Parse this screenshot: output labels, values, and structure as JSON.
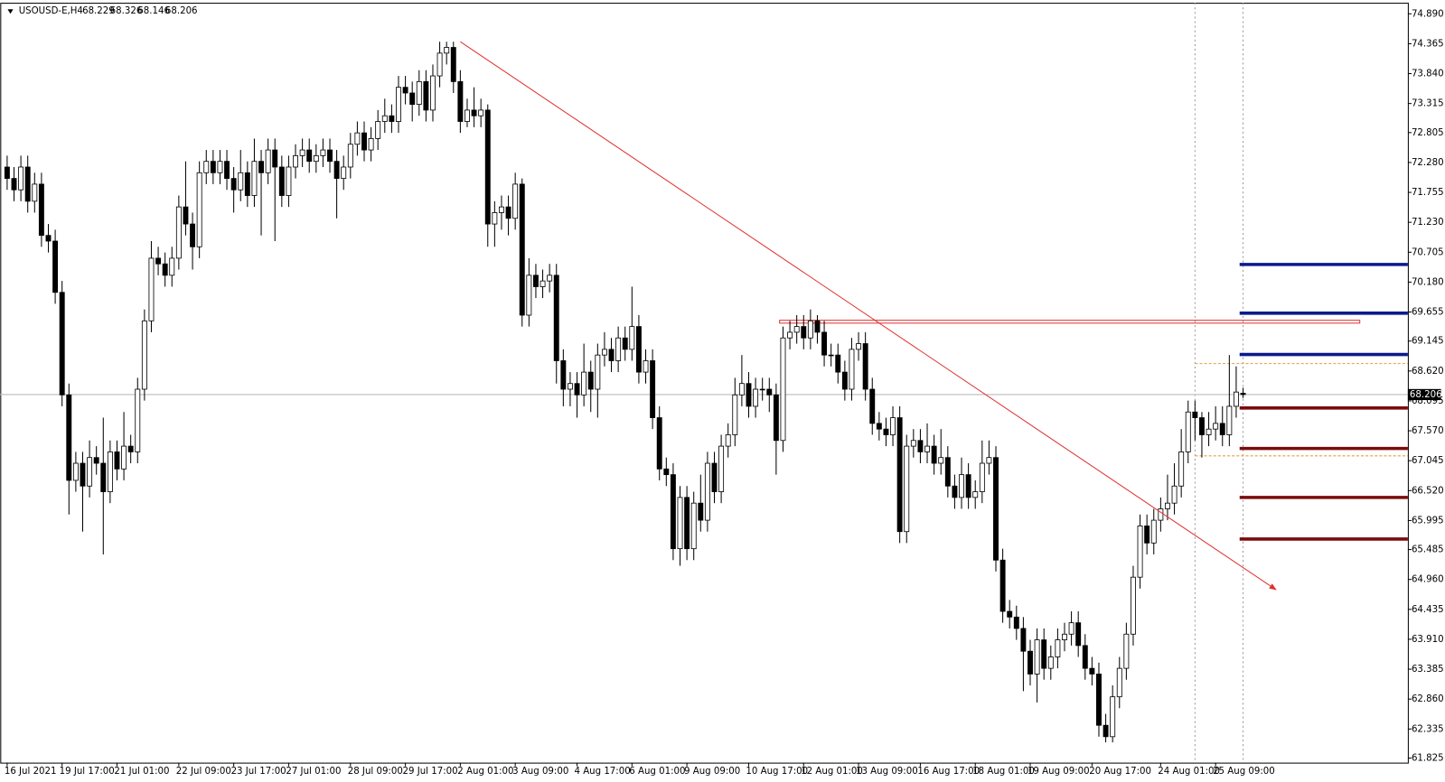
{
  "chart_data": {
    "type": "candlestick",
    "title": "USOUSD-E,H4",
    "open": [
      72.2,
      72.0,
      71.8,
      72.2,
      71.6,
      71.9,
      71.0,
      70.9,
      70.0,
      68.2,
      66.7,
      67.0,
      66.6,
      67.1,
      67.0,
      66.5,
      67.2,
      66.9,
      67.3,
      67.2,
      68.3,
      69.5,
      70.6,
      70.5,
      70.3,
      70.6,
      71.5,
      71.2,
      70.8,
      72.1,
      72.3,
      72.1,
      72.3,
      72.0,
      71.8,
      72.1,
      71.7,
      72.3,
      72.1,
      72.5,
      72.2,
      71.7,
      72.2,
      72.4,
      72.5,
      72.3,
      72.4,
      72.5,
      72.3,
      72.0,
      72.2,
      72.6,
      72.8,
      72.5,
      72.7,
      73.0,
      73.1,
      73.0,
      73.6,
      73.5,
      73.3,
      73.7,
      73.2,
      73.8,
      74.2,
      74.3,
      73.7,
      73.0,
      73.2,
      73.1,
      73.2,
      71.2,
      71.4,
      71.5,
      71.3,
      71.9,
      69.6,
      70.3,
      70.1,
      70.2,
      70.3,
      68.8,
      68.3,
      68.4,
      68.2,
      68.6,
      68.3,
      68.9,
      69.0,
      68.8,
      69.2,
      69.0,
      69.4,
      68.6,
      68.8,
      67.8,
      66.9,
      66.8,
      65.5,
      66.4,
      65.5,
      66.3,
      66.0,
      67.0,
      66.5,
      67.3,
      67.5,
      68.2,
      68.4,
      68.0,
      68.3,
      68.3,
      68.2,
      67.4,
      69.2,
      69.3,
      69.4,
      69.2,
      69.5,
      69.3,
      68.9,
      68.9,
      68.6,
      68.3,
      69.0,
      69.1,
      68.3,
      67.7,
      67.6,
      67.5,
      67.8,
      65.8,
      67.3,
      67.4,
      67.2,
      67.3,
      67.0,
      67.1,
      66.6,
      66.4,
      66.8,
      66.4,
      66.5,
      67.0,
      67.1,
      65.3,
      64.4,
      64.3,
      64.1,
      63.7,
      63.3,
      63.9,
      63.4,
      63.6,
      63.9,
      64.0,
      64.2,
      63.8,
      63.4,
      63.3,
      62.4,
      62.2,
      62.9,
      63.4,
      64.0,
      65.0,
      65.9,
      65.6,
      66.0,
      66.2,
      66.3,
      66.6,
      67.2,
      67.9,
      67.8,
      67.5,
      67.6,
      67.7,
      67.5,
      68.0,
      68.229
    ],
    "high": [
      72.4,
      72.2,
      72.4,
      72.4,
      72.1,
      72.1,
      71.2,
      71.1,
      70.2,
      68.4,
      67.2,
      67.2,
      67.4,
      67.3,
      67.8,
      67.4,
      67.4,
      67.9,
      67.5,
      68.5,
      69.7,
      70.9,
      70.8,
      70.7,
      70.8,
      71.7,
      72.3,
      71.4,
      72.3,
      72.5,
      72.5,
      72.5,
      72.5,
      72.2,
      72.5,
      72.3,
      72.7,
      72.5,
      72.7,
      72.7,
      72.4,
      72.4,
      72.6,
      72.7,
      72.7,
      72.6,
      72.7,
      72.7,
      72.5,
      72.4,
      72.8,
      73.0,
      73.0,
      72.9,
      73.2,
      73.4,
      73.3,
      73.8,
      73.8,
      73.7,
      73.9,
      73.9,
      74.0,
      74.4,
      74.4,
      74.4,
      73.9,
      73.4,
      73.6,
      73.4,
      73.3,
      71.6,
      71.7,
      71.7,
      72.1,
      72.0,
      70.6,
      70.5,
      70.4,
      70.5,
      70.5,
      69.0,
      68.6,
      68.6,
      69.1,
      68.8,
      69.1,
      69.3,
      69.2,
      69.4,
      69.4,
      70.1,
      69.6,
      69.0,
      69.0,
      68.0,
      67.1,
      67.0,
      66.6,
      66.6,
      66.5,
      66.8,
      67.2,
      67.2,
      67.5,
      67.7,
      68.5,
      68.9,
      68.6,
      68.5,
      68.5,
      68.5,
      68.4,
      69.4,
      69.5,
      69.6,
      69.6,
      69.7,
      69.6,
      69.5,
      69.1,
      69.1,
      68.8,
      69.2,
      69.3,
      69.3,
      68.5,
      67.9,
      67.8,
      68.0,
      68.0,
      67.5,
      67.6,
      67.6,
      67.7,
      67.5,
      67.6,
      67.3,
      66.8,
      67.1,
      67.0,
      66.7,
      67.4,
      67.4,
      67.3,
      65.5,
      64.6,
      64.5,
      64.3,
      63.9,
      64.1,
      64.1,
      63.8,
      64.1,
      64.2,
      64.4,
      64.4,
      64.0,
      63.6,
      63.5,
      62.6,
      63.1,
      63.6,
      64.2,
      65.2,
      66.1,
      66.1,
      66.2,
      66.4,
      66.8,
      67.0,
      67.6,
      68.1,
      68.1,
      67.9,
      67.9,
      68.0,
      68.0,
      68.9,
      68.7,
      68.326
    ],
    "low": [
      71.8,
      71.6,
      71.6,
      71.4,
      71.4,
      70.8,
      70.7,
      69.8,
      68.0,
      66.1,
      66.5,
      65.8,
      66.4,
      66.8,
      65.4,
      66.3,
      66.7,
      66.7,
      67.0,
      67.0,
      68.1,
      69.3,
      70.3,
      70.1,
      70.1,
      70.4,
      71.0,
      70.4,
      70.6,
      71.9,
      71.9,
      71.9,
      71.8,
      71.4,
      71.6,
      71.5,
      71.5,
      71.0,
      71.9,
      70.9,
      71.5,
      71.5,
      72.0,
      72.2,
      72.1,
      72.1,
      72.2,
      72.1,
      71.3,
      71.8,
      72.0,
      72.4,
      72.3,
      72.3,
      72.5,
      72.8,
      72.8,
      72.8,
      73.3,
      73.0,
      73.1,
      73.0,
      73.0,
      73.6,
      74.0,
      73.5,
      72.8,
      72.9,
      72.9,
      72.9,
      70.8,
      70.8,
      71.1,
      71.0,
      71.1,
      69.4,
      69.4,
      69.9,
      69.9,
      70.0,
      68.4,
      68.0,
      68.0,
      67.8,
      68.0,
      67.9,
      67.8,
      68.7,
      68.6,
      68.6,
      68.8,
      68.8,
      68.4,
      68.4,
      67.6,
      66.7,
      66.6,
      65.3,
      65.2,
      65.3,
      65.3,
      65.8,
      65.8,
      66.3,
      66.3,
      67.1,
      67.3,
      68.0,
      67.8,
      67.8,
      68.1,
      67.9,
      66.8,
      67.2,
      69.0,
      69.1,
      69.0,
      69.0,
      69.1,
      68.7,
      68.7,
      68.4,
      68.1,
      68.1,
      68.8,
      68.1,
      67.5,
      67.4,
      67.3,
      67.3,
      65.6,
      65.6,
      67.1,
      67.0,
      67.0,
      66.8,
      66.8,
      66.4,
      66.2,
      66.2,
      66.2,
      66.2,
      66.3,
      66.8,
      65.1,
      64.2,
      64.1,
      63.9,
      63.0,
      63.1,
      62.8,
      63.2,
      63.2,
      63.4,
      63.7,
      63.8,
      63.6,
      63.2,
      63.1,
      62.2,
      62.1,
      62.1,
      62.7,
      63.2,
      63.8,
      64.8,
      65.4,
      65.4,
      65.8,
      66.0,
      66.1,
      66.4,
      67.0,
      67.4,
      67.1,
      67.3,
      67.4,
      67.3,
      67.3,
      67.8,
      68.146
    ],
    "close": [
      72.0,
      71.8,
      72.2,
      71.6,
      71.9,
      71.0,
      70.9,
      70.0,
      68.2,
      66.7,
      67.0,
      66.6,
      67.1,
      67.0,
      66.5,
      67.2,
      66.9,
      67.3,
      67.2,
      68.3,
      69.5,
      70.6,
      70.5,
      70.3,
      70.6,
      71.5,
      71.2,
      70.8,
      72.1,
      72.3,
      72.1,
      72.3,
      72.0,
      71.8,
      72.1,
      71.7,
      72.3,
      72.1,
      72.5,
      72.2,
      71.7,
      72.2,
      72.4,
      72.5,
      72.3,
      72.4,
      72.5,
      72.3,
      72.0,
      72.2,
      72.6,
      72.8,
      72.5,
      72.7,
      73.0,
      73.1,
      73.0,
      73.6,
      73.5,
      73.3,
      73.7,
      73.2,
      73.8,
      74.2,
      74.3,
      73.7,
      73.0,
      73.2,
      73.1,
      73.2,
      71.2,
      71.4,
      71.5,
      71.3,
      71.9,
      69.6,
      70.3,
      70.1,
      70.2,
      70.3,
      68.8,
      68.3,
      68.4,
      68.2,
      68.6,
      68.3,
      68.9,
      69.0,
      68.8,
      69.2,
      69.0,
      69.4,
      68.6,
      68.8,
      67.8,
      66.9,
      66.8,
      65.5,
      66.4,
      65.5,
      66.3,
      66.0,
      67.0,
      66.5,
      67.3,
      67.5,
      68.2,
      68.4,
      68.0,
      68.3,
      68.3,
      68.2,
      67.4,
      69.2,
      69.3,
      69.4,
      69.2,
      69.5,
      69.3,
      68.9,
      68.9,
      68.6,
      68.3,
      69.0,
      69.1,
      68.3,
      67.7,
      67.6,
      67.5,
      67.8,
      65.8,
      67.3,
      67.4,
      67.2,
      67.3,
      67.0,
      67.1,
      66.6,
      66.4,
      66.8,
      66.4,
      66.5,
      67.0,
      67.1,
      65.3,
      64.4,
      64.3,
      64.1,
      63.7,
      63.3,
      63.9,
      63.4,
      63.6,
      63.9,
      64.0,
      64.2,
      63.8,
      63.4,
      63.3,
      62.4,
      62.2,
      62.9,
      63.4,
      64.0,
      65.0,
      65.9,
      65.6,
      66.0,
      66.2,
      66.3,
      66.6,
      67.2,
      67.9,
      67.8,
      67.5,
      67.6,
      67.7,
      67.5,
      68.0,
      68.25,
      68.206
    ],
    "xlim": [
      -1,
      204
    ],
    "ylim": [
      61.744,
      75.084
    ],
    "grid": false,
    "yticks": [
      {
        "value": 74.89,
        "label": "74.890"
      },
      {
        "value": 74.365,
        "label": "74.365"
      },
      {
        "value": 73.84,
        "label": "73.840"
      },
      {
        "value": 73.315,
        "label": "73.315"
      },
      {
        "value": 72.805,
        "label": "72.805"
      },
      {
        "value": 72.28,
        "label": "72.280"
      },
      {
        "value": 71.755,
        "label": "71.755"
      },
      {
        "value": 71.23,
        "label": "71.230"
      },
      {
        "value": 70.705,
        "label": "70.705"
      },
      {
        "value": 70.18,
        "label": "70.180"
      },
      {
        "value": 69.655,
        "label": "69.655"
      },
      {
        "value": 69.145,
        "label": "69.145"
      },
      {
        "value": 68.62,
        "label": "68.620"
      },
      {
        "value": 68.095,
        "label": "68.095"
      },
      {
        "value": 67.57,
        "label": "67.570"
      },
      {
        "value": 67.045,
        "label": "67.045"
      },
      {
        "value": 66.52,
        "label": "66.520"
      },
      {
        "value": 65.995,
        "label": "65.995"
      },
      {
        "value": 65.485,
        "label": "65.485"
      },
      {
        "value": 64.96,
        "label": "64.960"
      },
      {
        "value": 64.435,
        "label": "64.435"
      },
      {
        "value": 63.91,
        "label": "63.910"
      },
      {
        "value": 63.385,
        "label": "63.385"
      },
      {
        "value": 62.86,
        "label": "62.860"
      },
      {
        "value": 62.335,
        "label": "62.335"
      },
      {
        "value": 61.825,
        "label": "61.825"
      }
    ],
    "xticks": [
      {
        "value": 0,
        "label": "16 Jul 2021"
      },
      {
        "value": 8,
        "label": "19 Jul 17:00"
      },
      {
        "value": 16,
        "label": "21 Jul 01:00"
      },
      {
        "value": 25,
        "label": "22 Jul 09:00"
      },
      {
        "value": 33,
        "label": "23 Jul 17:00"
      },
      {
        "value": 41,
        "label": "27 Jul 01:00"
      },
      {
        "value": 50,
        "label": "28 Jul 09:00"
      },
      {
        "value": 58,
        "label": "29 Jul 17:00"
      },
      {
        "value": 66,
        "label": "2 Aug 01:00"
      },
      {
        "value": 74,
        "label": "3 Aug 09:00"
      },
      {
        "value": 83,
        "label": "4 Aug 17:00"
      },
      {
        "value": 91,
        "label": "6 Aug 01:00"
      },
      {
        "value": 99,
        "label": "9 Aug 09:00"
      },
      {
        "value": 108,
        "label": "10 Aug 17:00"
      },
      {
        "value": 116,
        "label": "12 Aug 01:00"
      },
      {
        "value": 124,
        "label": "13 Aug 09:00"
      },
      {
        "value": 133,
        "label": "16 Aug 17:00"
      },
      {
        "value": 141,
        "label": "18 Aug 01:00"
      },
      {
        "value": 149,
        "label": "19 Aug 09:00"
      },
      {
        "value": 158,
        "label": "20 Aug 17:00"
      },
      {
        "value": 168,
        "label": "24 Aug 01:00"
      },
      {
        "value": 176,
        "label": "25 Aug 09:00"
      }
    ],
    "vlines": [
      173,
      180
    ],
    "levels": [
      {
        "value": 70.49,
        "color": "#0b1a8a"
      },
      {
        "value": 69.635,
        "color": "#0b1a8a"
      },
      {
        "value": 68.91,
        "color": "#0b1a8a"
      },
      {
        "value": 67.97,
        "color": "#7a0c0c"
      },
      {
        "value": 67.26,
        "color": "#7a0c0c"
      },
      {
        "value": 66.4,
        "color": "#7a0c0c"
      },
      {
        "value": 65.67,
        "color": "#7a0c0c"
      }
    ],
    "levels_from": 179.5,
    "zone": {
      "from": 112.5,
      "to": 197,
      "low": 69.46,
      "high": 69.51,
      "color": "#e03030"
    },
    "trendline": {
      "x": [
        66,
        184.8
      ],
      "y": [
        74.4,
        64.78
      ],
      "color": "#e03030"
    },
    "guides": {
      "from": 173,
      "values": [
        68.75,
        67.13
      ],
      "color": "#e0a040"
    }
  }
}
